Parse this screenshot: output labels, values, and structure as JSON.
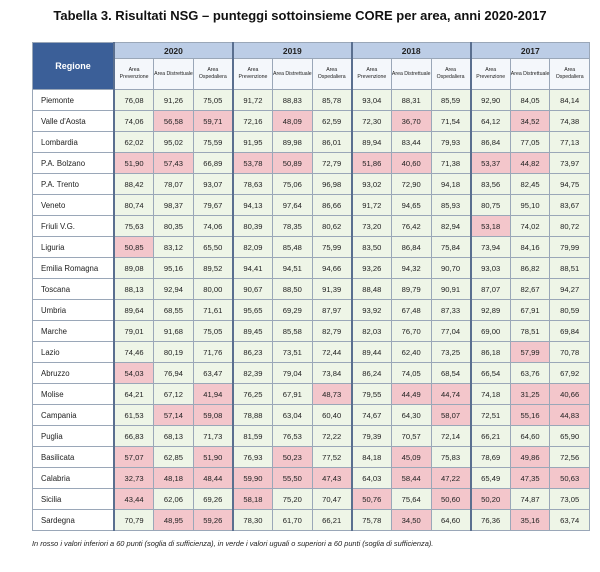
{
  "title": "Tabella 3. Risultati NSG – punteggi sottoinsieme CORE per area, anni 2020-2017",
  "table": {
    "region_header": "Regione",
    "years": [
      "2020",
      "2019",
      "2018",
      "2017"
    ],
    "areas": [
      "Area Prevenzione",
      "Area Distrettuale",
      "Area Ospedaliera"
    ],
    "threshold": 60,
    "colors": {
      "below": "#f3c6cb",
      "above": "#eef5e7",
      "header": "#3b5f98",
      "year": "#bccde6"
    },
    "rows": [
      {
        "region": "Piemonte",
        "values": [
          "76,08",
          "91,26",
          "75,05",
          "91,72",
          "88,83",
          "85,78",
          "93,04",
          "88,31",
          "85,59",
          "92,90",
          "84,05",
          "84,14"
        ]
      },
      {
        "region": "Valle d'Aosta",
        "values": [
          "74,06",
          "56,58",
          "59,71",
          "72,16",
          "48,09",
          "62,59",
          "72,30",
          "36,70",
          "71,54",
          "64,12",
          "34,52",
          "74,38"
        ]
      },
      {
        "region": "Lombardia",
        "values": [
          "62,02",
          "95,02",
          "75,59",
          "91,95",
          "89,98",
          "86,01",
          "89,94",
          "83,44",
          "79,93",
          "86,84",
          "77,05",
          "77,13"
        ]
      },
      {
        "region": "P.A. Bolzano",
        "values": [
          "51,90",
          "57,43",
          "66,89",
          "53,78",
          "50,89",
          "72,79",
          "51,86",
          "40,60",
          "71,38",
          "53,37",
          "44,82",
          "73,97"
        ]
      },
      {
        "region": "P.A.  Trento",
        "values": [
          "88,42",
          "78,07",
          "93,07",
          "78,63",
          "75,06",
          "96,98",
          "93,02",
          "72,90",
          "94,18",
          "83,56",
          "82,45",
          "94,75"
        ]
      },
      {
        "region": "Veneto",
        "values": [
          "80,74",
          "98,37",
          "79,67",
          "94,13",
          "97,64",
          "86,66",
          "91,72",
          "94,65",
          "85,93",
          "80,75",
          "95,10",
          "83,67"
        ]
      },
      {
        "region": "Friuli V.G.",
        "values": [
          "75,63",
          "80,35",
          "74,06",
          "80,39",
          "78,35",
          "80,62",
          "73,20",
          "76,42",
          "82,94",
          "53,18",
          "74,02",
          "80,72"
        ]
      },
      {
        "region": "Liguria",
        "values": [
          "50,85",
          "83,12",
          "65,50",
          "82,09",
          "85,48",
          "75,99",
          "83,50",
          "86,84",
          "75,84",
          "73,94",
          "84,16",
          "79,99"
        ]
      },
      {
        "region": "Emilia Romagna",
        "values": [
          "89,08",
          "95,16",
          "89,52",
          "94,41",
          "94,51",
          "94,66",
          "93,26",
          "94,32",
          "90,70",
          "93,03",
          "86,82",
          "88,51"
        ]
      },
      {
        "region": "Toscana",
        "values": [
          "88,13",
          "92,94",
          "80,00",
          "90,67",
          "88,50",
          "91,39",
          "88,48",
          "89,79",
          "90,91",
          "87,07",
          "82,67",
          "94,27"
        ]
      },
      {
        "region": "Umbria",
        "values": [
          "89,64",
          "68,55",
          "71,61",
          "95,65",
          "69,29",
          "87,97",
          "93,92",
          "67,48",
          "87,33",
          "92,89",
          "67,91",
          "80,59"
        ]
      },
      {
        "region": "Marche",
        "values": [
          "79,01",
          "91,68",
          "75,05",
          "89,45",
          "85,58",
          "82,79",
          "82,03",
          "76,70",
          "77,04",
          "69,00",
          "78,51",
          "69,84"
        ]
      },
      {
        "region": "Lazio",
        "values": [
          "74,46",
          "80,19",
          "71,76",
          "86,23",
          "73,51",
          "72,44",
          "89,44",
          "62,40",
          "73,25",
          "86,18",
          "57,99",
          "70,78"
        ]
      },
      {
        "region": "Abruzzo",
        "values": [
          "54,03",
          "76,94",
          "63,47",
          "82,39",
          "79,04",
          "73,84",
          "86,24",
          "74,05",
          "68,54",
          "66,54",
          "63,76",
          "67,92"
        ]
      },
      {
        "region": "Molise",
        "values": [
          "64,21",
          "67,12",
          "41,94",
          "76,25",
          "67,91",
          "48,73",
          "79,55",
          "44,49",
          "44,74",
          "74,18",
          "31,25",
          "40,66"
        ]
      },
      {
        "region": "Campania",
        "values": [
          "61,53",
          "57,14",
          "59,08",
          "78,88",
          "63,04",
          "60,40",
          "74,67",
          "64,30",
          "58,07",
          "72,51",
          "55,16",
          "44,83"
        ]
      },
      {
        "region": "Puglia",
        "values": [
          "66,83",
          "68,13",
          "71,73",
          "81,59",
          "76,53",
          "72,22",
          "79,39",
          "70,57",
          "72,14",
          "66,21",
          "64,60",
          "65,90"
        ]
      },
      {
        "region": "Basilicata",
        "values": [
          "57,07",
          "62,85",
          "51,90",
          "76,93",
          "50,23",
          "77,52",
          "84,18",
          "45,09",
          "75,83",
          "78,69",
          "49,86",
          "72,56"
        ]
      },
      {
        "region": "Calabria",
        "values": [
          "32,73",
          "48,18",
          "48,44",
          "59,90",
          "55,50",
          "47,43",
          "64,03",
          "58,44",
          "47,22",
          "65,49",
          "47,35",
          "50,63"
        ]
      },
      {
        "region": "Sicilia",
        "values": [
          "43,44",
          "62,06",
          "69,26",
          "58,18",
          "75,20",
          "70,47",
          "50,76",
          "75,64",
          "50,60",
          "50,20",
          "74,87",
          "73,05"
        ]
      },
      {
        "region": "Sardegna",
        "values": [
          "70,79",
          "48,95",
          "59,26",
          "78,30",
          "61,70",
          "66,21",
          "75,78",
          "34,50",
          "64,60",
          "76,36",
          "35,16",
          "63,74"
        ]
      }
    ]
  },
  "note": "In rosso i valori inferiori a 60 punti (soglia di sufficienza), in verde i valori uguali o superiori a 60 punti (soglia di sufficienza)."
}
